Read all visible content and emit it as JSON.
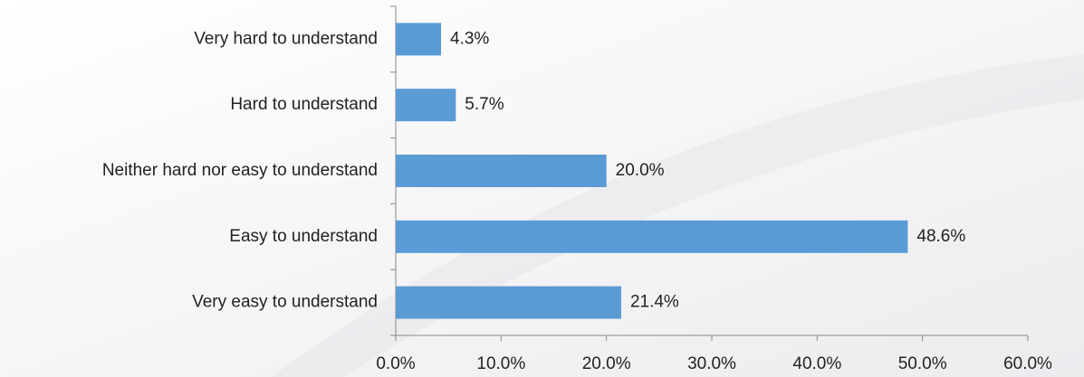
{
  "chart_data": {
    "type": "bar",
    "orientation": "horizontal",
    "categories": [
      "Very hard to understand",
      "Hard to understand",
      "Neither hard nor easy to understand",
      "Easy to understand",
      "Very easy to understand"
    ],
    "values": [
      4.3,
      5.7,
      20.0,
      48.6,
      21.4
    ],
    "value_labels": [
      "4.3%",
      "5.7%",
      "20.0%",
      "48.6%",
      "21.4%"
    ],
    "color": "#5b9bd5",
    "xlim": [
      0,
      60
    ],
    "xticks": [
      {
        "value": 0,
        "label": "0.0%"
      },
      {
        "value": 10,
        "label": "10.0%"
      },
      {
        "value": 20,
        "label": "20.0%"
      },
      {
        "value": 30,
        "label": "30.0%"
      },
      {
        "value": 40,
        "label": "40.0%"
      },
      {
        "value": 50,
        "label": "50.0%"
      },
      {
        "value": 60,
        "label": "60.0%"
      }
    ],
    "grid": false
  }
}
